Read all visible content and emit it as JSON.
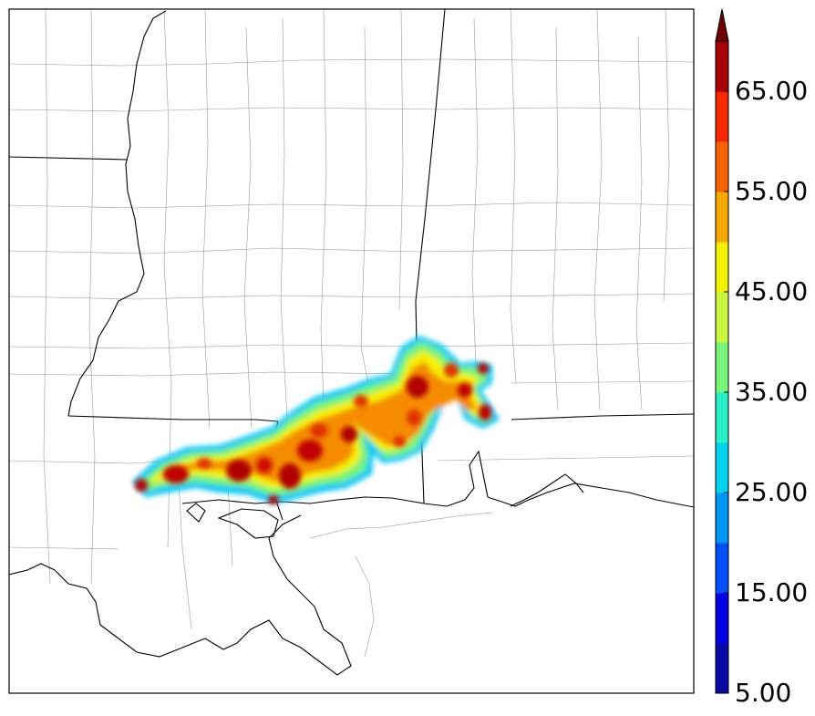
{
  "colorbar": {
    "tick_labels": [
      "5.00",
      "15.00",
      "25.00",
      "35.00",
      "45.00",
      "55.00",
      "65.00"
    ],
    "levels": [
      5,
      10,
      15,
      20,
      25,
      30,
      35,
      40,
      45,
      50,
      55,
      60,
      65,
      70
    ],
    "colors": [
      "#0a0aa8",
      "#0000e6",
      "#0050f5",
      "#0096f5",
      "#00d2f0",
      "#28f0c8",
      "#78f578",
      "#c8f53c",
      "#f5f000",
      "#f5a800",
      "#f56400",
      "#f52800",
      "#a80000"
    ],
    "extend_color": "#6e0000",
    "extend": "max"
  }
}
